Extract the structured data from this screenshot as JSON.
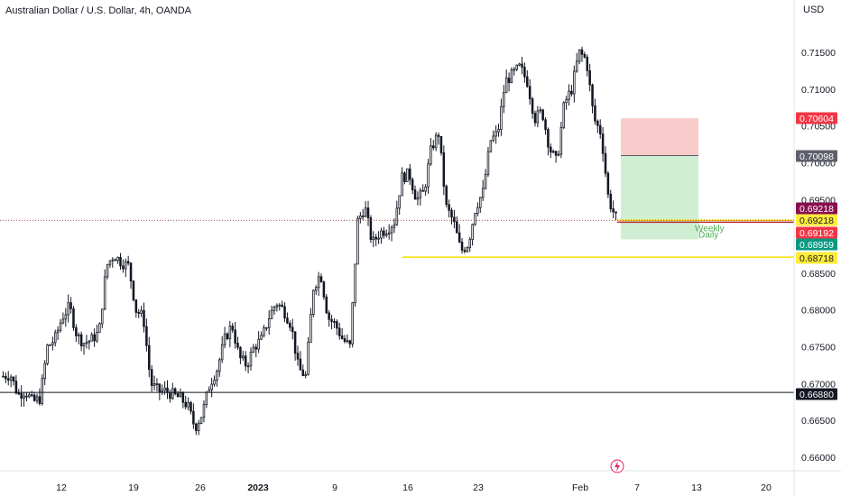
{
  "header": {
    "title": "Australian Dollar / U.S. Dollar, 4h, OANDA",
    "currency": "USD"
  },
  "chart_data": {
    "type": "candlestick",
    "symbol": "AUDUSD",
    "timeframe": "4h",
    "y_axis": {
      "range": [
        0.657,
        0.719
      ],
      "ticks": [
        "0.71500",
        "0.71000",
        "0.70500",
        "0.70000",
        "0.69500",
        "0.69000",
        "0.68500",
        "0.68000",
        "0.67500",
        "0.67000",
        "0.66500",
        "0.66000"
      ]
    },
    "x_axis": {
      "ticks": [
        {
          "label": "12",
          "bold": false
        },
        {
          "label": "19",
          "bold": false
        },
        {
          "label": "26",
          "bold": false
        },
        {
          "label": "2023",
          "bold": true
        },
        {
          "label": "9",
          "bold": false
        },
        {
          "label": "16",
          "bold": false
        },
        {
          "label": "23",
          "bold": false
        },
        {
          "label": "Feb",
          "bold": false
        },
        {
          "label": "7",
          "bold": false
        },
        {
          "label": "13",
          "bold": false
        },
        {
          "label": "20",
          "bold": false
        }
      ]
    },
    "price_path_keypoints": [
      [
        0.671,
        0.6712
      ],
      [
        0.6685,
        0.669
      ],
      [
        0.6675,
        0.668
      ],
      [
        0.675,
        0.676
      ],
      [
        0.679,
        0.6805
      ],
      [
        0.6765,
        0.6755
      ],
      [
        0.676,
        0.677
      ],
      [
        0.686,
        0.6875
      ],
      [
        0.6865,
        0.686
      ],
      [
        0.68,
        0.679
      ],
      [
        0.67,
        0.669
      ],
      [
        0.669,
        0.6685
      ],
      [
        0.668,
        0.667
      ],
      [
        0.664,
        0.666
      ],
      [
        0.67,
        0.672
      ],
      [
        0.676,
        0.678
      ],
      [
        0.6735,
        0.6725
      ],
      [
        0.675,
        0.676
      ],
      [
        0.679,
        0.681
      ],
      [
        0.68,
        0.678
      ],
      [
        0.672,
        0.671
      ],
      [
        0.683,
        0.685
      ],
      [
        0.679,
        0.678
      ],
      [
        0.676,
        0.675
      ],
      [
        0.692,
        0.694
      ],
      [
        0.689,
        0.6905
      ],
      [
        0.691,
        0.692
      ],
      [
        0.698,
        0.6985
      ],
      [
        0.695,
        0.696
      ],
      [
        0.702,
        0.704
      ],
      [
        0.694,
        0.692
      ],
      [
        0.688,
        0.689
      ],
      [
        0.694,
        0.696
      ],
      [
        0.703,
        0.704
      ],
      [
        0.711,
        0.712
      ],
      [
        0.713,
        0.711
      ],
      [
        0.706,
        0.707
      ],
      [
        0.702,
        0.7
      ],
      [
        0.708,
        0.71
      ],
      [
        0.715,
        0.714
      ],
      [
        0.706,
        0.704
      ],
      [
        0.695,
        0.6925
      ]
    ],
    "levels": [
      {
        "price": 0.6688,
        "label": "0.66880",
        "bg": "#131722",
        "fg": "#ffffff",
        "style": "solid-black"
      },
      {
        "price": 0.68718,
        "label": "0.68718",
        "bg": "#ffeb3b",
        "fg": "#131722",
        "style": "yellow"
      },
      {
        "price": 0.69218,
        "label": "0.69218",
        "bg": "#ffeb3b",
        "fg": "#131722",
        "style": "yellow-short"
      },
      {
        "price": 0.69218,
        "label": "0.69218",
        "bg": "#880e4f",
        "fg": "#ffffff",
        "style": "dotted"
      },
      {
        "price": 0.69192,
        "label": "0.69192",
        "bg": "#f23645",
        "fg": "#ffffff",
        "style": "red-short"
      },
      {
        "price": 0.68959,
        "label": "0.68959",
        "bg": "#089981",
        "fg": "#ffffff",
        "style": "green-tag"
      },
      {
        "price": 0.70098,
        "label": "0.70098",
        "bg": "#5d606b",
        "fg": "#ffffff",
        "style": "gray-tag"
      },
      {
        "price": 0.70604,
        "label": "0.70604",
        "bg": "#f23645",
        "fg": "#ffffff",
        "style": "red-tag"
      }
    ],
    "position": {
      "type": "short",
      "entry": 0.70098,
      "stop": 0.70604,
      "target": 0.68959
    },
    "line_labels": [
      "Weekly",
      "Daily"
    ]
  },
  "colors": {
    "candle": "#131722",
    "grid": "#f0f3fa",
    "axis_bg": "#ffffff",
    "stop_zone": "#f8b9b9",
    "target_zone": "#c8ebc9"
  }
}
